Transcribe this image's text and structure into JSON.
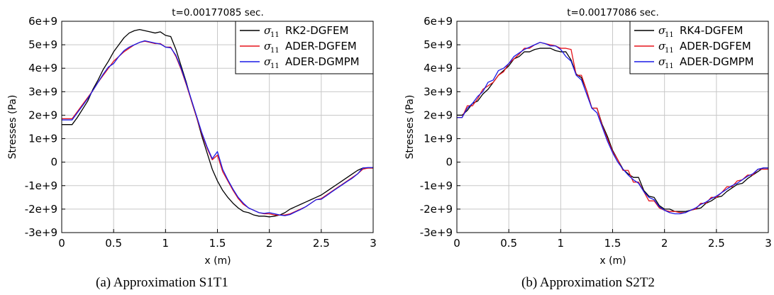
{
  "chart_data": [
    {
      "type": "line",
      "title": "t=0.00177085 sec.",
      "xlabel": "x (m)",
      "ylabel": "Stresses (Pa)",
      "caption": "(a) Approximation S1T1",
      "xlim": [
        0,
        3
      ],
      "ylim": [
        -3000000000,
        6000000000
      ],
      "x_ticks": [
        0,
        0.5,
        1,
        1.5,
        2,
        2.5,
        3
      ],
      "x_tick_labels": [
        "0",
        "0.5",
        "1",
        "1.5",
        "2",
        "2.5",
        "3"
      ],
      "y_ticks": [
        6000000000,
        5000000000,
        4000000000,
        3000000000,
        2000000000,
        1000000000,
        0,
        -1000000000,
        -2000000000,
        -3000000000
      ],
      "y_tick_labels": [
        "6e+9",
        "5e+9",
        "4e+9",
        "3e+9",
        "2e+9",
        "1e+9",
        "0",
        "-1e+9",
        "-2e+9",
        "-3e+9"
      ],
      "grid": true,
      "legend_position": "top-right",
      "series": [
        {
          "name": "RK2-DGFEM",
          "legend_symbol": "σ",
          "legend_subscript": "11",
          "color": "#000000",
          "x": [
            0,
            0.1,
            0.15,
            0.2,
            0.25,
            0.3,
            0.35,
            0.4,
            0.45,
            0.5,
            0.55,
            0.6,
            0.65,
            0.7,
            0.75,
            0.8,
            0.85,
            0.9,
            0.95,
            1.0,
            1.05,
            1.1,
            1.15,
            1.2,
            1.25,
            1.3,
            1.35,
            1.4,
            1.45,
            1.5,
            1.55,
            1.6,
            1.65,
            1.7,
            1.75,
            1.8,
            1.85,
            1.9,
            1.95,
            2.0,
            2.05,
            2.1,
            2.15,
            2.2,
            2.25,
            2.3,
            2.35,
            2.4,
            2.45,
            2.5,
            2.55,
            2.6,
            2.65,
            2.7,
            2.75,
            2.8,
            2.85,
            2.9,
            2.95,
            3.0
          ],
          "y": [
            1600000000,
            1600000000,
            1900000000,
            2250000000,
            2600000000,
            3100000000,
            3500000000,
            3950000000,
            4300000000,
            4700000000,
            5000000000,
            5300000000,
            5500000000,
            5600000000,
            5650000000,
            5600000000,
            5550000000,
            5500000000,
            5550000000,
            5400000000,
            5350000000,
            4800000000,
            4100000000,
            3400000000,
            2600000000,
            1900000000,
            1100000000,
            400000000,
            -300000000,
            -800000000,
            -1200000000,
            -1500000000,
            -1750000000,
            -1950000000,
            -2100000000,
            -2150000000,
            -2250000000,
            -2300000000,
            -2300000000,
            -2330000000,
            -2300000000,
            -2250000000,
            -2150000000,
            -2000000000,
            -1900000000,
            -1800000000,
            -1700000000,
            -1600000000,
            -1500000000,
            -1400000000,
            -1250000000,
            -1100000000,
            -950000000,
            -800000000,
            -650000000,
            -500000000,
            -350000000,
            -250000000,
            -250000000,
            -250000000
          ]
        },
        {
          "name": "ADER-DGFEM",
          "legend_symbol": "σ",
          "legend_subscript": "11",
          "color": "#e6131b",
          "x": [
            0,
            0.1,
            0.15,
            0.2,
            0.25,
            0.3,
            0.35,
            0.4,
            0.45,
            0.5,
            0.55,
            0.6,
            0.65,
            0.7,
            0.75,
            0.8,
            0.85,
            0.9,
            0.95,
            1.0,
            1.05,
            1.1,
            1.15,
            1.2,
            1.25,
            1.3,
            1.35,
            1.4,
            1.45,
            1.5,
            1.55,
            1.6,
            1.65,
            1.7,
            1.75,
            1.8,
            1.85,
            1.9,
            1.95,
            2.0,
            2.05,
            2.1,
            2.15,
            2.2,
            2.25,
            2.3,
            2.35,
            2.4,
            2.45,
            2.5,
            2.55,
            2.6,
            2.65,
            2.7,
            2.75,
            2.8,
            2.85,
            2.9,
            2.95,
            3.0
          ],
          "y": [
            1850000000,
            1850000000,
            2150000000,
            2450000000,
            2750000000,
            3050000000,
            3400000000,
            3700000000,
            4000000000,
            4300000000,
            4500000000,
            4700000000,
            4850000000,
            5000000000,
            5100000000,
            5150000000,
            5100000000,
            5050000000,
            5050000000,
            4900000000,
            4900000000,
            4500000000,
            3950000000,
            3300000000,
            2600000000,
            1900000000,
            1200000000,
            600000000,
            100000000,
            300000000,
            -400000000,
            -800000000,
            -1200000000,
            -1550000000,
            -1800000000,
            -1950000000,
            -2050000000,
            -2150000000,
            -2200000000,
            -2200000000,
            -2250000000,
            -2250000000,
            -2250000000,
            -2200000000,
            -2100000000,
            -2000000000,
            -1900000000,
            -1750000000,
            -1600000000,
            -1550000000,
            -1400000000,
            -1250000000,
            -1100000000,
            -950000000,
            -800000000,
            -650000000,
            -500000000,
            -300000000,
            -250000000,
            -250000000
          ]
        },
        {
          "name": "ADER-DGMPM",
          "legend_symbol": "σ",
          "legend_subscript": "11",
          "color": "#1a1ae6",
          "x": [
            0,
            0.1,
            0.15,
            0.2,
            0.25,
            0.3,
            0.35,
            0.4,
            0.45,
            0.5,
            0.55,
            0.6,
            0.65,
            0.7,
            0.75,
            0.8,
            0.85,
            0.9,
            0.95,
            1.0,
            1.05,
            1.1,
            1.15,
            1.2,
            1.25,
            1.3,
            1.35,
            1.4,
            1.45,
            1.5,
            1.55,
            1.6,
            1.65,
            1.7,
            1.75,
            1.8,
            1.85,
            1.9,
            1.95,
            2.0,
            2.05,
            2.1,
            2.15,
            2.2,
            2.25,
            2.3,
            2.35,
            2.4,
            2.45,
            2.5,
            2.55,
            2.6,
            2.65,
            2.7,
            2.75,
            2.8,
            2.85,
            2.9,
            2.95,
            3.0
          ],
          "y": [
            1800000000,
            1800000000,
            2100000000,
            2400000000,
            2700000000,
            3050000000,
            3400000000,
            3750000000,
            4050000000,
            4200000000,
            4500000000,
            4750000000,
            4900000000,
            5000000000,
            5100000000,
            5170000000,
            5120000000,
            5070000000,
            5030000000,
            4900000000,
            4870000000,
            4550000000,
            4000000000,
            3350000000,
            2650000000,
            1950000000,
            1250000000,
            650000000,
            150000000,
            450000000,
            -300000000,
            -750000000,
            -1150000000,
            -1500000000,
            -1750000000,
            -1950000000,
            -2050000000,
            -2150000000,
            -2180000000,
            -2150000000,
            -2200000000,
            -2250000000,
            -2280000000,
            -2230000000,
            -2120000000,
            -2020000000,
            -1900000000,
            -1750000000,
            -1600000000,
            -1580000000,
            -1430000000,
            -1270000000,
            -1120000000,
            -970000000,
            -820000000,
            -680000000,
            -500000000,
            -250000000,
            -230000000,
            -230000000
          ]
        }
      ]
    },
    {
      "type": "line",
      "title": "t=0.00177086 sec.",
      "xlabel": "x (m)",
      "ylabel": "Stresses (Pa)",
      "caption": "(b) Approximation S2T2",
      "xlim": [
        0,
        3
      ],
      "ylim": [
        -3000000000,
        6000000000
      ],
      "x_ticks": [
        0,
        0.5,
        1,
        1.5,
        2,
        2.5,
        3
      ],
      "x_tick_labels": [
        "0",
        "0.5",
        "1",
        "1.5",
        "2",
        "2.5",
        "3"
      ],
      "y_ticks": [
        6000000000,
        5000000000,
        4000000000,
        3000000000,
        2000000000,
        1000000000,
        0,
        -1000000000,
        -2000000000,
        -3000000000
      ],
      "y_tick_labels": [
        "6e+9",
        "5e+9",
        "4e+9",
        "3e+9",
        "2e+9",
        "1e+9",
        "0",
        "-1e+9",
        "-2e+9",
        "-3e+9"
      ],
      "grid": true,
      "legend_position": "top-right",
      "series": [
        {
          "name": "RK4-DGFEM",
          "legend_symbol": "σ",
          "legend_subscript": "11",
          "color": "#000000",
          "x": [
            0,
            0.05,
            0.1,
            0.15,
            0.2,
            0.25,
            0.3,
            0.35,
            0.4,
            0.45,
            0.5,
            0.55,
            0.6,
            0.65,
            0.7,
            0.75,
            0.8,
            0.85,
            0.9,
            0.95,
            1.0,
            1.05,
            1.1,
            1.15,
            1.2,
            1.25,
            1.3,
            1.35,
            1.4,
            1.45,
            1.5,
            1.55,
            1.6,
            1.65,
            1.7,
            1.75,
            1.8,
            1.85,
            1.9,
            1.95,
            2.0,
            2.05,
            2.1,
            2.15,
            2.2,
            2.25,
            2.3,
            2.35,
            2.4,
            2.45,
            2.5,
            2.55,
            2.6,
            2.65,
            2.7,
            2.75,
            2.8,
            2.85,
            2.9,
            2.95,
            3.0
          ],
          "y": [
            2000000000,
            2000000000,
            2200000000,
            2500000000,
            2600000000,
            2900000000,
            3100000000,
            3400000000,
            3700000000,
            3900000000,
            4100000000,
            4400000000,
            4500000000,
            4700000000,
            4700000000,
            4800000000,
            4850000000,
            4850000000,
            4850000000,
            4750000000,
            4700000000,
            4700000000,
            4350000000,
            3750000000,
            3600000000,
            3050000000,
            2300000000,
            2300000000,
            1600000000,
            1100000000,
            500000000,
            100000000,
            -300000000,
            -500000000,
            -650000000,
            -650000000,
            -1200000000,
            -1450000000,
            -1500000000,
            -1850000000,
            -2000000000,
            -2000000000,
            -2100000000,
            -2100000000,
            -2100000000,
            -2050000000,
            -2000000000,
            -1950000000,
            -1750000000,
            -1650000000,
            -1500000000,
            -1450000000,
            -1250000000,
            -1100000000,
            -950000000,
            -900000000,
            -700000000,
            -550000000,
            -400000000,
            -250000000,
            -250000000
          ]
        },
        {
          "name": "ADER-DGFEM",
          "legend_symbol": "σ",
          "legend_subscript": "11",
          "color": "#e6131b",
          "x": [
            0,
            0.05,
            0.1,
            0.15,
            0.2,
            0.25,
            0.3,
            0.35,
            0.4,
            0.45,
            0.5,
            0.55,
            0.6,
            0.65,
            0.7,
            0.75,
            0.8,
            0.85,
            0.9,
            0.95,
            1.0,
            1.05,
            1.1,
            1.15,
            1.2,
            1.25,
            1.3,
            1.35,
            1.4,
            1.45,
            1.5,
            1.55,
            1.6,
            1.65,
            1.7,
            1.75,
            1.8,
            1.85,
            1.9,
            1.95,
            2.0,
            2.05,
            2.1,
            2.15,
            2.2,
            2.25,
            2.3,
            2.35,
            2.4,
            2.45,
            2.5,
            2.55,
            2.6,
            2.65,
            2.7,
            2.75,
            2.8,
            2.85,
            2.9,
            2.95,
            3.0
          ],
          "y": [
            1900000000,
            1900000000,
            2400000000,
            2400000000,
            2700000000,
            3100000000,
            3250000000,
            3400000000,
            3700000000,
            3850000000,
            4200000000,
            4400000000,
            4600000000,
            4850000000,
            4850000000,
            5000000000,
            5100000000,
            5050000000,
            5000000000,
            4950000000,
            4850000000,
            4850000000,
            4800000000,
            3700000000,
            3700000000,
            3050000000,
            2300000000,
            2300000000,
            1550000000,
            1000000000,
            450000000,
            100000000,
            -350000000,
            -350000000,
            -850000000,
            -850000000,
            -1250000000,
            -1650000000,
            -1650000000,
            -1950000000,
            -2050000000,
            -2100000000,
            -2100000000,
            -2150000000,
            -2150000000,
            -2050000000,
            -2000000000,
            -1750000000,
            -1750000000,
            -1500000000,
            -1500000000,
            -1300000000,
            -1050000000,
            -1050000000,
            -800000000,
            -750000000,
            -550000000,
            -550000000,
            -300000000,
            -300000000,
            -300000000
          ]
        },
        {
          "name": "ADER-DGMPM",
          "legend_symbol": "σ",
          "legend_subscript": "11",
          "color": "#1a1ae6",
          "x": [
            0,
            0.05,
            0.1,
            0.15,
            0.2,
            0.25,
            0.3,
            0.35,
            0.4,
            0.45,
            0.5,
            0.55,
            0.6,
            0.65,
            0.7,
            0.75,
            0.8,
            0.85,
            0.9,
            0.95,
            1.0,
            1.05,
            1.1,
            1.15,
            1.2,
            1.25,
            1.3,
            1.35,
            1.4,
            1.45,
            1.5,
            1.55,
            1.6,
            1.65,
            1.7,
            1.75,
            1.8,
            1.85,
            1.9,
            1.95,
            2.0,
            2.05,
            2.1,
            2.15,
            2.2,
            2.25,
            2.3,
            2.35,
            2.4,
            2.45,
            2.5,
            2.55,
            2.6,
            2.65,
            2.7,
            2.75,
            2.8,
            2.85,
            2.9,
            2.95,
            3.0
          ],
          "y": [
            1900000000,
            1900000000,
            2300000000,
            2500000000,
            2800000000,
            3000000000,
            3400000000,
            3500000000,
            3900000000,
            4000000000,
            4200000000,
            4500000000,
            4650000000,
            4800000000,
            4900000000,
            5000000000,
            5100000000,
            5050000000,
            4950000000,
            4950000000,
            4800000000,
            4500000000,
            4300000000,
            3700000000,
            3500000000,
            2900000000,
            2300000000,
            2100000000,
            1500000000,
            900000000,
            400000000,
            0,
            -300000000,
            -550000000,
            -750000000,
            -900000000,
            -1250000000,
            -1500000000,
            -1600000000,
            -1900000000,
            -2050000000,
            -2150000000,
            -2200000000,
            -2200000000,
            -2150000000,
            -2050000000,
            -1950000000,
            -1800000000,
            -1700000000,
            -1550000000,
            -1450000000,
            -1300000000,
            -1150000000,
            -1000000000,
            -900000000,
            -750000000,
            -600000000,
            -500000000,
            -300000000,
            -250000000,
            -250000000
          ]
        }
      ]
    }
  ]
}
